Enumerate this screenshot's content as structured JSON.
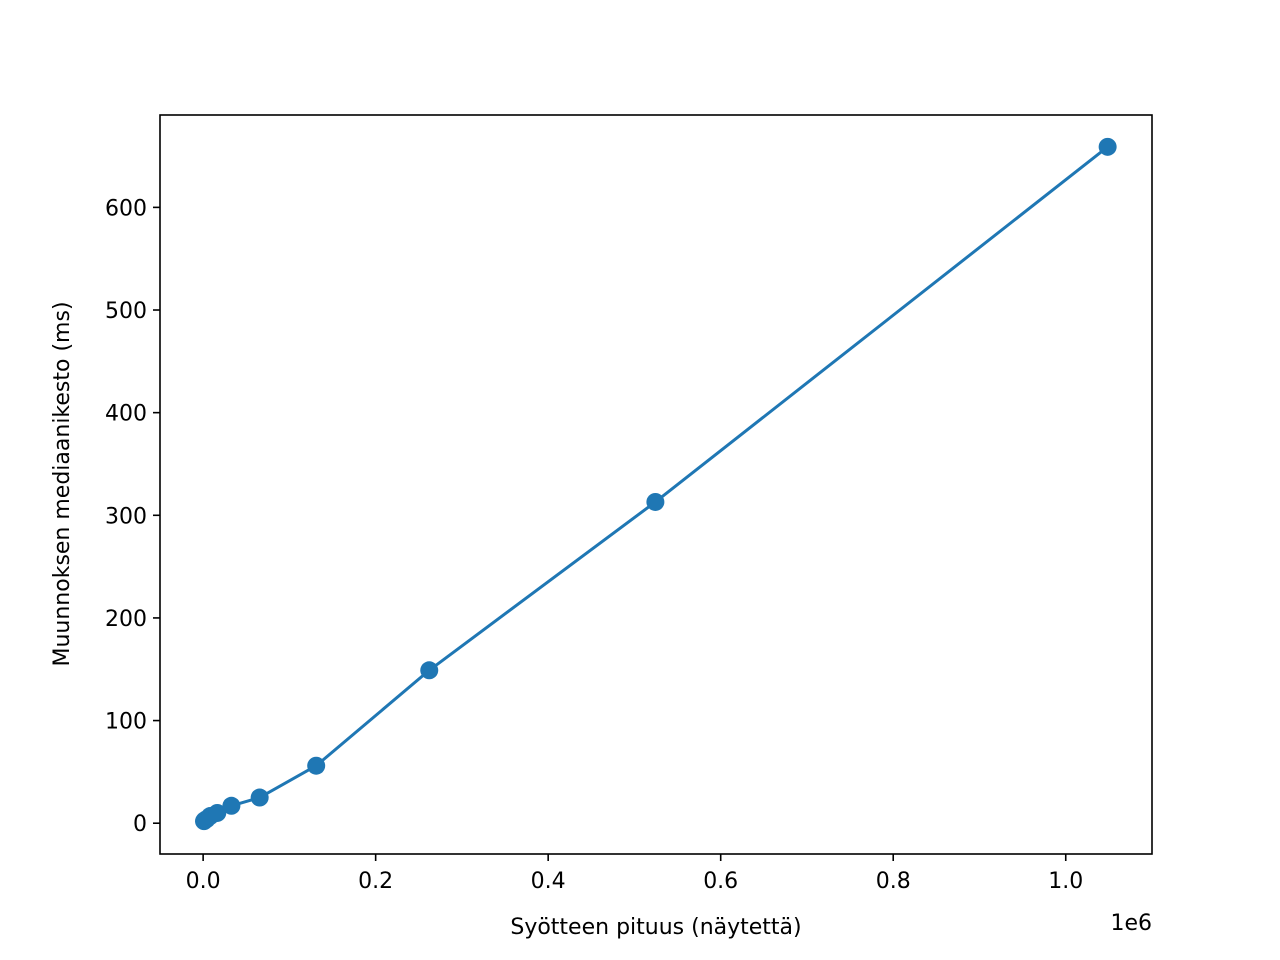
{
  "chart_data": {
    "type": "line",
    "title": "",
    "xlabel": "Syötteen pituus (näytettä)",
    "ylabel": "Muunnoksen mediaanikesto (ms)",
    "x_offset_label": "1e6",
    "xlim": [
      -50000,
      1100000
    ],
    "ylim": [
      -30,
      690
    ],
    "x_ticks": [
      0,
      200000,
      400000,
      600000,
      800000,
      1000000
    ],
    "x_tick_labels": [
      "0.0",
      "0.2",
      "0.4",
      "0.6",
      "0.8",
      "1.0"
    ],
    "y_ticks": [
      0,
      100,
      200,
      300,
      400,
      500,
      600
    ],
    "y_tick_labels": [
      "0",
      "100",
      "200",
      "300",
      "400",
      "500",
      "600"
    ],
    "grid": false,
    "legend": false,
    "series": [
      {
        "color": "#1f77b4",
        "marker": "circle",
        "x": [
          1024,
          2048,
          4096,
          8192,
          16384,
          32768,
          65536,
          131072,
          262144,
          524288,
          1048576
        ],
        "y": [
          2,
          3,
          4,
          7,
          10,
          17,
          25,
          56,
          149,
          313,
          659
        ]
      }
    ]
  }
}
